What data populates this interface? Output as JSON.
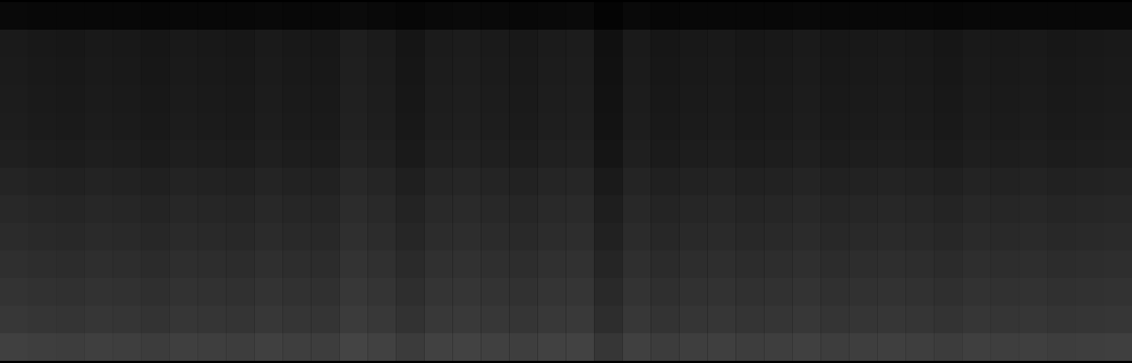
{
  "chart_data": {
    "type": "heatmap",
    "tick_labels": false,
    "color_range": [
      0,
      255
    ],
    "cells": [
      [
        9,
        8,
        8,
        8,
        8,
        7,
        8,
        8,
        8,
        9,
        8,
        8,
        11,
        9,
        7,
        9,
        10,
        9,
        8,
        9,
        10,
        4,
        9,
        7,
        8,
        8,
        8,
        8,
        9,
        8,
        8,
        8,
        8,
        7,
        8,
        8,
        8,
        8,
        8,
        8
      ],
      [
        26,
        24,
        23,
        25,
        24,
        22,
        25,
        24,
        23,
        26,
        24,
        23,
        30,
        27,
        21,
        27,
        28,
        26,
        24,
        27,
        28,
        16,
        26,
        22,
        24,
        25,
        23,
        24,
        26,
        23,
        24,
        25,
        24,
        22,
        25,
        24,
        25,
        23,
        24,
        25
      ],
      [
        27,
        25,
        24,
        26,
        25,
        23,
        26,
        25,
        24,
        27,
        25,
        24,
        31,
        28,
        22,
        28,
        29,
        27,
        25,
        28,
        29,
        17,
        27,
        23,
        25,
        26,
        24,
        25,
        27,
        24,
        25,
        26,
        25,
        23,
        26,
        25,
        26,
        24,
        25,
        26
      ],
      [
        28,
        26,
        25,
        27,
        26,
        24,
        27,
        26,
        25,
        28,
        26,
        25,
        32,
        29,
        23,
        29,
        30,
        28,
        26,
        29,
        30,
        18,
        28,
        24,
        26,
        27,
        25,
        26,
        28,
        25,
        26,
        27,
        26,
        24,
        27,
        26,
        27,
        25,
        26,
        27
      ],
      [
        29,
        27,
        26,
        28,
        27,
        25,
        28,
        27,
        26,
        29,
        27,
        26,
        33,
        30,
        24,
        30,
        31,
        29,
        27,
        30,
        31,
        19,
        29,
        25,
        27,
        28,
        26,
        27,
        29,
        26,
        27,
        28,
        27,
        25,
        28,
        27,
        28,
        26,
        27,
        28
      ],
      [
        31,
        29,
        28,
        30,
        29,
        27,
        30,
        29,
        28,
        31,
        29,
        28,
        35,
        32,
        26,
        32,
        33,
        31,
        29,
        32,
        33,
        21,
        31,
        27,
        29,
        30,
        28,
        29,
        31,
        28,
        29,
        30,
        29,
        27,
        30,
        29,
        30,
        28,
        29,
        30
      ],
      [
        36,
        34,
        33,
        35,
        34,
        32,
        35,
        34,
        33,
        36,
        34,
        33,
        40,
        37,
        31,
        37,
        38,
        36,
        34,
        37,
        38,
        26,
        36,
        32,
        34,
        35,
        33,
        34,
        36,
        33,
        34,
        35,
        34,
        32,
        35,
        34,
        35,
        33,
        34,
        35
      ],
      [
        40,
        38,
        37,
        39,
        38,
        36,
        39,
        38,
        37,
        40,
        38,
        37,
        44,
        41,
        35,
        41,
        42,
        40,
        38,
        41,
        42,
        30,
        40,
        36,
        38,
        39,
        37,
        38,
        40,
        37,
        38,
        39,
        38,
        36,
        39,
        38,
        39,
        37,
        38,
        39
      ],
      [
        43,
        41,
        40,
        42,
        41,
        39,
        42,
        41,
        40,
        43,
        41,
        40,
        47,
        44,
        38,
        44,
        45,
        43,
        41,
        44,
        45,
        33,
        43,
        39,
        41,
        42,
        40,
        41,
        43,
        40,
        41,
        42,
        41,
        39,
        42,
        41,
        42,
        40,
        41,
        42
      ],
      [
        47,
        45,
        44,
        46,
        45,
        43,
        46,
        45,
        44,
        47,
        45,
        44,
        51,
        48,
        42,
        48,
        49,
        47,
        45,
        48,
        49,
        37,
        47,
        43,
        45,
        46,
        44,
        45,
        47,
        44,
        45,
        46,
        45,
        43,
        46,
        45,
        46,
        44,
        45,
        46
      ],
      [
        51,
        49,
        48,
        50,
        49,
        47,
        50,
        49,
        48,
        51,
        49,
        48,
        55,
        52,
        46,
        52,
        53,
        51,
        49,
        52,
        53,
        41,
        51,
        47,
        49,
        50,
        48,
        49,
        51,
        48,
        49,
        50,
        49,
        47,
        50,
        49,
        50,
        48,
        49,
        50
      ],
      [
        55,
        53,
        52,
        54,
        53,
        51,
        54,
        53,
        52,
        55,
        53,
        52,
        59,
        56,
        50,
        56,
        57,
        55,
        53,
        56,
        57,
        45,
        55,
        51,
        53,
        54,
        52,
        53,
        55,
        52,
        53,
        54,
        53,
        51,
        54,
        53,
        54,
        52,
        53,
        54
      ],
      [
        64,
        62,
        61,
        63,
        62,
        60,
        63,
        62,
        61,
        64,
        62,
        61,
        68,
        65,
        59,
        65,
        66,
        64,
        62,
        65,
        66,
        54,
        64,
        60,
        62,
        63,
        61,
        62,
        64,
        61,
        62,
        63,
        62,
        60,
        63,
        62,
        63,
        61,
        62,
        63
      ]
    ]
  }
}
